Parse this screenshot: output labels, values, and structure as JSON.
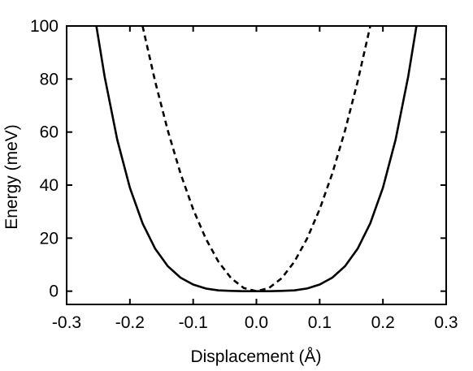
{
  "chart_data": {
    "type": "line",
    "xlabel": "Displacement (Å)",
    "ylabel": "Energy (meV)",
    "xlim": [
      -0.3,
      0.3
    ],
    "ylim": [
      -5,
      100
    ],
    "x_ticks": [
      -0.3,
      -0.2,
      -0.1,
      0.0,
      0.1,
      0.2,
      0.3
    ],
    "x_tick_labels": [
      "-0.3",
      "-0.2",
      "-0.1",
      "0.0",
      "0.1",
      "0.2",
      "0.3"
    ],
    "y_ticks": [
      0,
      20,
      40,
      60,
      80,
      100
    ],
    "y_tick_labels": [
      "0",
      "20",
      "40",
      "60",
      "80",
      "100"
    ],
    "grid": false,
    "legend": "none",
    "series": [
      {
        "style": "solid",
        "color": "#000000",
        "x": [
          -0.253,
          -0.24,
          -0.22,
          -0.2,
          -0.18,
          -0.16,
          -0.14,
          -0.12,
          -0.1,
          -0.08,
          -0.06,
          -0.04,
          -0.02,
          0.0,
          0.02,
          0.04,
          0.06,
          0.08,
          0.1,
          0.12,
          0.14,
          0.16,
          0.18,
          0.2,
          0.22,
          0.24,
          0.253
        ],
        "values": [
          100,
          81.0,
          57.1,
          39.0,
          25.6,
          16.0,
          9.4,
          5.1,
          2.5,
          1.0,
          0.3,
          0.1,
          0.0,
          0.0,
          0.0,
          0.1,
          0.3,
          1.0,
          2.5,
          5.1,
          9.4,
          16.0,
          25.6,
          39.0,
          57.1,
          81.0,
          100
        ]
      },
      {
        "style": "dashed",
        "color": "#000000",
        "x": [
          -0.18,
          -0.16,
          -0.14,
          -0.12,
          -0.1,
          -0.08,
          -0.06,
          -0.04,
          -0.02,
          0.0,
          0.02,
          0.04,
          0.06,
          0.08,
          0.1,
          0.12,
          0.14,
          0.16,
          0.18
        ],
        "values": [
          100,
          79.0,
          60.5,
          44.4,
          30.9,
          19.8,
          11.1,
          4.9,
          1.2,
          0.0,
          1.2,
          4.9,
          11.1,
          19.8,
          30.9,
          44.4,
          60.5,
          79.0,
          100
        ]
      }
    ]
  }
}
